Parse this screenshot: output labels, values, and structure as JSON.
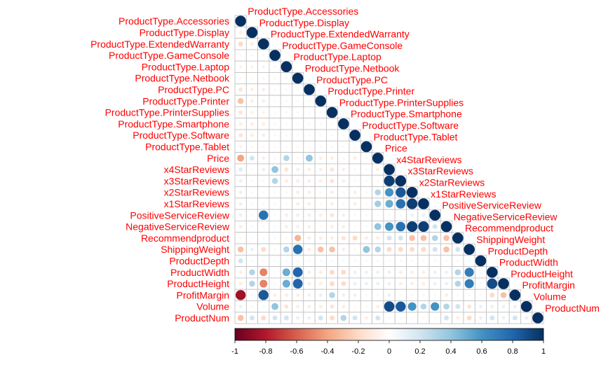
{
  "chart_data": {
    "type": "heatmap",
    "subtype": "correlation-lower-triangle",
    "title": "",
    "variables": [
      "ProductType.Accessories",
      "ProductType.Display",
      "ProductType.ExtendedWarranty",
      "ProductType.GameConsole",
      "ProductType.Laptop",
      "ProductType.Netbook",
      "ProductType.PC",
      "ProductType.Printer",
      "ProductType.PrinterSupplies",
      "ProductType.Smartphone",
      "ProductType.Software",
      "ProductType.Tablet",
      "Price",
      "x4StarReviews",
      "x3StarReviews",
      "x2StarReviews",
      "x1StarReviews",
      "PositiveServiceReview",
      "NegativeServiceReview",
      "Recommendproduct",
      "ShippingWeight",
      "ProductDepth",
      "ProductWidth",
      "ProductHeight",
      "ProfitMargin",
      "Volume",
      "ProductNum"
    ],
    "colorbar": {
      "ticks": [
        "-1",
        "-0.8",
        "-0.6",
        "-0.4",
        "-0.2",
        "0",
        "0.2",
        "0.4",
        "0.6",
        "0.8",
        "1"
      ],
      "range": [
        -1,
        1
      ],
      "colors": [
        "#67001F",
        "#B2182B",
        "#D6604D",
        "#F4A582",
        "#FDDBC7",
        "#FFFFFF",
        "#D1E5F0",
        "#92C5DE",
        "#4393C3",
        "#2166AC",
        "#053061"
      ]
    },
    "label_color": "#ff0000",
    "grid": true,
    "lower_triangle": [
      [
        1
      ],
      [
        -0.1,
        1
      ],
      [
        -0.2,
        -0.1,
        1
      ],
      [
        -0.05,
        -0.05,
        -0.05,
        1
      ],
      [
        -0.08,
        -0.08,
        -0.08,
        -0.05,
        1
      ],
      [
        -0.05,
        -0.05,
        -0.05,
        -0.05,
        -0.05,
        1
      ],
      [
        -0.15,
        -0.1,
        -0.1,
        -0.05,
        -0.05,
        -0.05,
        1
      ],
      [
        -0.3,
        -0.1,
        -0.1,
        -0.05,
        -0.05,
        -0.05,
        -0.05,
        1
      ],
      [
        -0.15,
        -0.08,
        -0.08,
        -0.05,
        -0.05,
        -0.05,
        -0.05,
        -0.05,
        1
      ],
      [
        -0.1,
        -0.1,
        -0.1,
        -0.05,
        -0.05,
        -0.05,
        -0.05,
        -0.05,
        -0.05,
        1
      ],
      [
        -0.15,
        -0.1,
        -0.1,
        -0.05,
        -0.05,
        -0.05,
        -0.05,
        -0.05,
        -0.05,
        -0.05,
        1
      ],
      [
        -0.08,
        -0.05,
        -0.05,
        -0.05,
        -0.05,
        -0.05,
        -0.05,
        -0.05,
        -0.05,
        -0.05,
        -0.05,
        1
      ],
      [
        -0.4,
        0.2,
        -0.1,
        -0.05,
        0.3,
        -0.05,
        0.4,
        -0.1,
        -0.1,
        -0.05,
        -0.1,
        0.05,
        1
      ],
      [
        0.15,
        0.05,
        0.1,
        0.4,
        -0.15,
        -0.1,
        -0.1,
        -0.1,
        -0.15,
        -0.1,
        -0.05,
        0.05,
        -0.1,
        1
      ],
      [
        0.1,
        0.05,
        0.05,
        0.3,
        -0.1,
        -0.1,
        -0.1,
        -0.1,
        -0.15,
        -0.1,
        -0.05,
        0.05,
        -0.05,
        0.95,
        1
      ],
      [
        0.1,
        0.05,
        0.05,
        0.05,
        -0.05,
        -0.1,
        -0.1,
        -0.05,
        -0.1,
        -0.05,
        -0.1,
        -0.05,
        0.3,
        0.6,
        0.85,
        1
      ],
      [
        0.1,
        0.05,
        0.05,
        0.05,
        -0.05,
        -0.1,
        -0.1,
        -0.05,
        -0.1,
        -0.05,
        -0.1,
        -0.05,
        0.35,
        0.5,
        0.75,
        0.95,
        1
      ],
      [
        0.1,
        0.05,
        0.75,
        0.05,
        -0.1,
        -0.1,
        -0.1,
        -0.1,
        -0.15,
        -0.1,
        -0.05,
        -0.05,
        -0.05,
        0.05,
        0.05,
        0.1,
        0.1,
        1
      ],
      [
        -0.1,
        0.05,
        -0.05,
        0.05,
        -0.1,
        -0.1,
        -0.1,
        -0.05,
        -0.1,
        -0.1,
        -0.05,
        0.05,
        0.4,
        0.6,
        0.75,
        0.95,
        0.95,
        0.2,
        1
      ],
      [
        -0.05,
        0.05,
        -0.05,
        0.05,
        -0.05,
        -0.35,
        -0.1,
        -0.1,
        -0.1,
        -0.15,
        -0.2,
        -0.1,
        -0.1,
        0.2,
        0.2,
        -0.3,
        -0.3,
        0.3,
        -0.3,
        1
      ],
      [
        -0.3,
        0.1,
        -0.2,
        -0.05,
        0.3,
        0.75,
        -0.1,
        -0.3,
        -0.3,
        -0.1,
        -0.05,
        0.4,
        0.3,
        -0.2,
        -0.2,
        -0.2,
        -0.2,
        0.2,
        -0.3,
        0.2,
        1
      ],
      [
        0.2,
        0.05,
        0.05,
        0.05,
        0.05,
        0.05,
        0.05,
        0.05,
        0.05,
        0.05,
        0.05,
        0.05,
        0.05,
        0.05,
        0.05,
        0.05,
        0.05,
        0.05,
        0.05,
        0.05,
        0.05,
        1
      ],
      [
        -0.1,
        0.3,
        -0.5,
        0.05,
        0.5,
        0.8,
        -0.1,
        -0.1,
        -0.2,
        -0.2,
        0.1,
        0.1,
        0.1,
        0.1,
        -0.1,
        -0.1,
        -0.1,
        0.1,
        0.1,
        0.3,
        0.7,
        0.05,
        1
      ],
      [
        -0.1,
        0.3,
        -0.5,
        0.05,
        0.5,
        0.8,
        -0.1,
        -0.1,
        -0.2,
        -0.2,
        0.1,
        0.1,
        0.1,
        0.1,
        -0.1,
        -0.1,
        -0.1,
        0.1,
        0.1,
        0.3,
        0.7,
        0.05,
        0.9,
        1
      ],
      [
        -0.85,
        0.05,
        0.85,
        -0.1,
        -0.1,
        -0.1,
        -0.1,
        0.1,
        0.3,
        -0.1,
        0.1,
        -0.05,
        0.05,
        0.1,
        0.05,
        0.05,
        -0.05,
        0.05,
        -0.1,
        0.05,
        0.05,
        -0.05,
        -0.2,
        -0.3,
        1
      ],
      [
        0.1,
        0.05,
        0.05,
        0.4,
        -0.15,
        -0.1,
        -0.1,
        -0.1,
        -0.15,
        -0.1,
        -0.05,
        0.05,
        -0.1,
        0.9,
        0.85,
        0.6,
        0.3,
        0.6,
        0.3,
        0.2,
        -0.15,
        0.1,
        0.1,
        0.1,
        0.1,
        1
      ],
      [
        -0.3,
        0.2,
        -0.2,
        0.2,
        0.2,
        0.1,
        0.1,
        0.2,
        -0.2,
        0.3,
        0.2,
        -0.1,
        0.2,
        0.05,
        0.05,
        -0.05,
        -0.05,
        0.05,
        0.2,
        -0.1,
        -0.2,
        0.1,
        0.2,
        0.1,
        0.2,
        0.1,
        1
      ]
    ]
  }
}
